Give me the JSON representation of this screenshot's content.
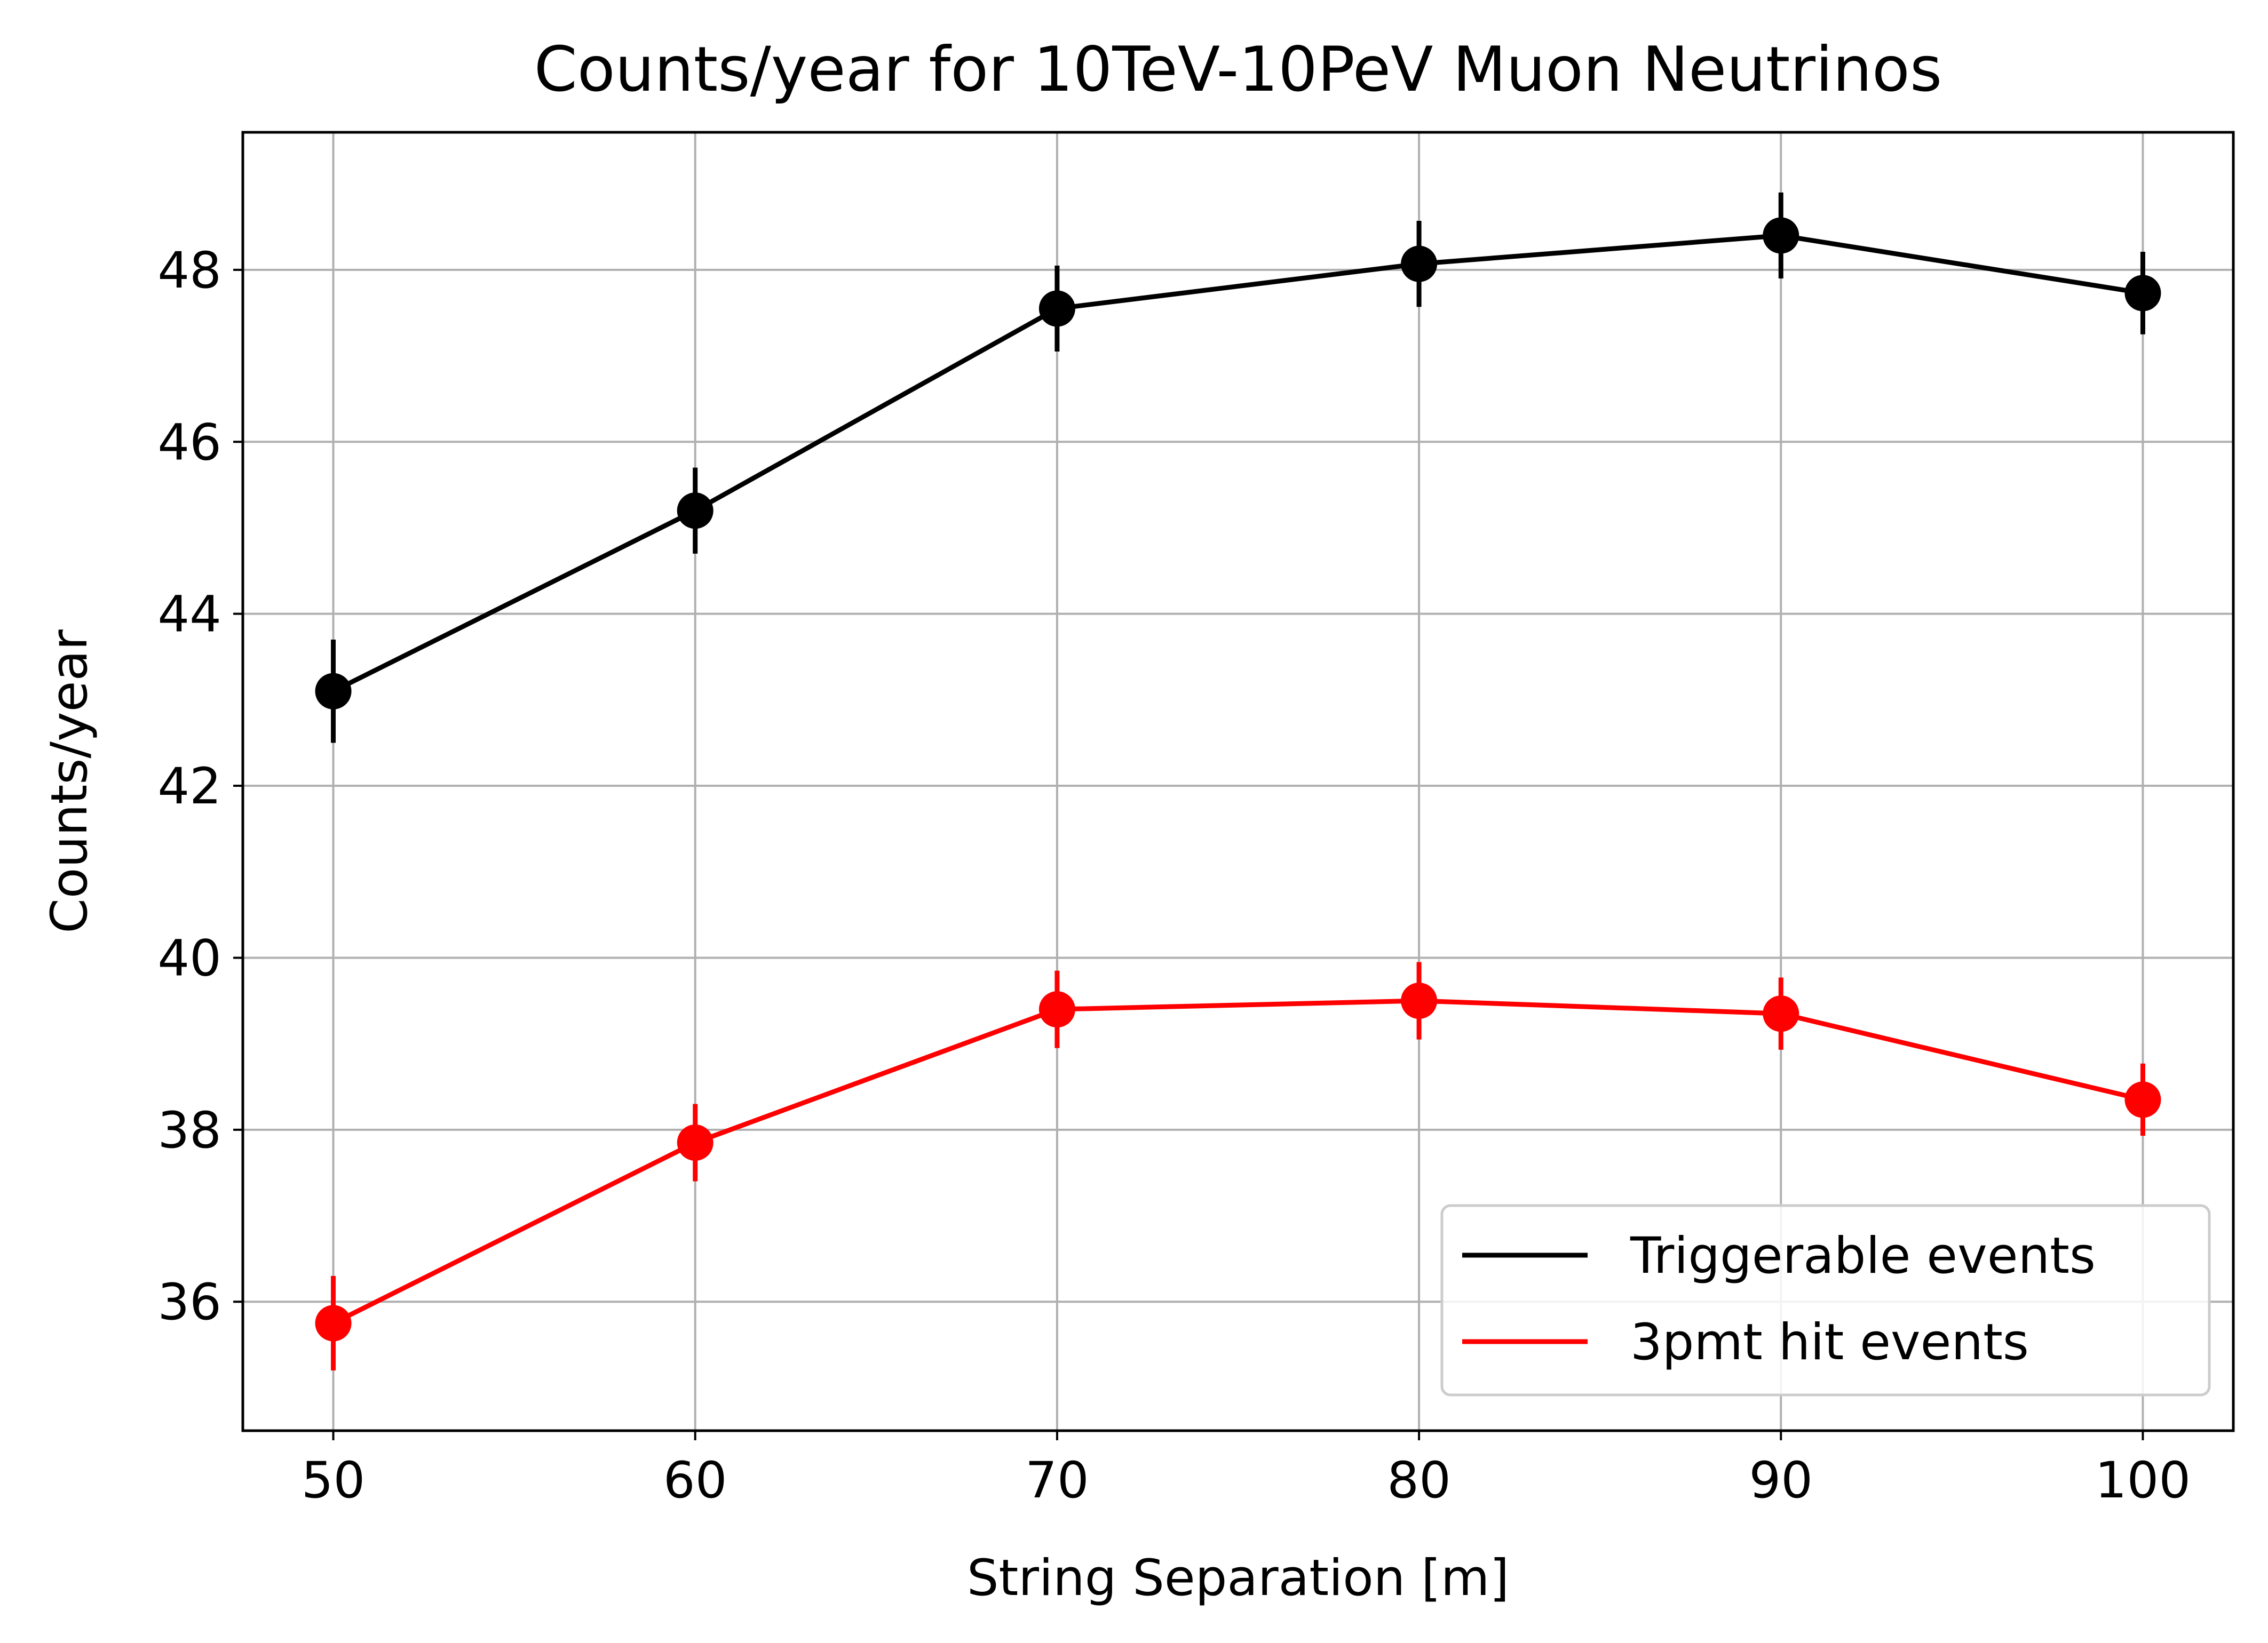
{
  "chart_data": {
    "type": "line",
    "title": "Counts/year for 10TeV-10PeV Muon Neutrinos",
    "xlabel": "String Separation [m]",
    "ylabel": "Counts/year",
    "x": [
      50,
      60,
      70,
      80,
      90,
      100
    ],
    "x_ticks": [
      50,
      60,
      70,
      80,
      90,
      100
    ],
    "y_ticks": [
      36,
      38,
      40,
      42,
      44,
      46,
      48
    ],
    "xlim": [
      47.5,
      102.5
    ],
    "ylim": [
      34.5,
      49.6
    ],
    "grid": true,
    "legend_position": "lower-right",
    "series": [
      {
        "name": "Triggerable events",
        "color": "#000000",
        "values": [
          43.1,
          45.2,
          47.55,
          48.07,
          48.4,
          47.73
        ],
        "errors": [
          0.6,
          0.5,
          0.5,
          0.5,
          0.5,
          0.48
        ]
      },
      {
        "name": "3pmt hit events",
        "color": "#ff0000",
        "values": [
          35.75,
          37.85,
          39.4,
          39.5,
          39.35,
          38.35
        ],
        "errors": [
          0.55,
          0.45,
          0.45,
          0.45,
          0.42,
          0.42
        ]
      }
    ]
  }
}
